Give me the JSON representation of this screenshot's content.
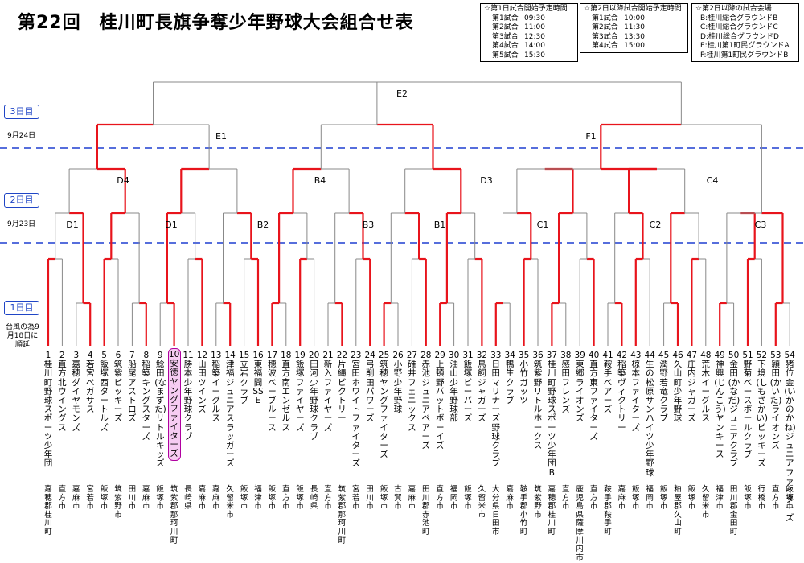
{
  "title": "第22回　桂川町長旗争奪少年野球大会組合せ表",
  "schedule1": {
    "title": "☆第1日試合開始予定時間",
    "rows": [
      {
        "label": "第1試合",
        "time": "09:30"
      },
      {
        "label": "第2試合",
        "time": "11:00"
      },
      {
        "label": "第3試合",
        "time": "12:30"
      },
      {
        "label": "第4試合",
        "time": "14:00"
      },
      {
        "label": "第5試合",
        "time": "15:30"
      }
    ]
  },
  "schedule2": {
    "title": "☆第2日以降試合開始予定時間",
    "rows": [
      {
        "label": "第1試合",
        "time": "10:00"
      },
      {
        "label": "第2試合",
        "time": "11:30"
      },
      {
        "label": "第3試合",
        "time": "13:30"
      },
      {
        "label": "第4試合",
        "time": "15:00"
      }
    ]
  },
  "venues": {
    "title": "☆第2日以降の試合会場",
    "rows": [
      "B:桂川総合グラウンドB",
      "C:桂川総合グラウンドC",
      "D:桂川総合グラウンドD",
      "E:桂川第1町民グラウンドA",
      "F:桂川第1町民グラウンドB"
    ]
  },
  "days": {
    "day3": "3日目",
    "day3_date": "9月24日",
    "day2": "2日目",
    "day2_date": "9月23日",
    "day1": "1日目",
    "note": "台風の為9月18日に順延"
  },
  "colors": {
    "winner": "#e8141c",
    "line": "#888888",
    "dash": "#1f3fd0",
    "highlight": "#f6ccf2"
  },
  "game_labels": [
    "E2",
    "E1",
    "F1",
    "D4",
    "B4",
    "D3",
    "C4",
    "D1",
    "D1",
    "B2",
    "B3",
    "B1",
    "C1",
    "C2",
    "C3"
  ],
  "teams": [
    {
      "name": "1桂川町野球スポーツ少年団",
      "city": "嘉穂郡桂川町"
    },
    {
      "name": "2直方北ウイングス",
      "city": "直方市"
    },
    {
      "name": "3嘉穂ダイヤモンズ",
      "city": "嘉麻市"
    },
    {
      "name": "4若宮ペガサス",
      "city": "宮若市"
    },
    {
      "name": "5飯塚西タートルズ",
      "city": "飯塚市"
    },
    {
      "name": "6筑紫ビッキーズ",
      "city": "筑紫野市"
    },
    {
      "name": "7船尾アストロズ",
      "city": "田川市"
    },
    {
      "name": "8稲築キングスターズ",
      "city": "嘉麻市"
    },
    {
      "name": "9鯰田(なまずた)リトルキッズ",
      "city": "飯塚市"
    },
    {
      "name": "10安徳ヤングファイターズ",
      "city": "筑紫郡那珂川町"
    },
    {
      "name": "11勝本少年野球クラブ",
      "city": "長崎県"
    },
    {
      "name": "12山田ツインズ",
      "city": "嘉麻市"
    },
    {
      "name": "13稲築イーグルス",
      "city": "嘉麻市"
    },
    {
      "name": "14津福ジュニアスラッガーズ",
      "city": "久留米市"
    },
    {
      "name": "15立岩クラブ",
      "city": "飯塚市"
    },
    {
      "name": "16東福間SSE",
      "city": "福津市"
    },
    {
      "name": "17穂波ベーブルース",
      "city": "飯塚市"
    },
    {
      "name": "18直方南エンゼルス",
      "city": "直方市"
    },
    {
      "name": "19飯塚ファイヤーズ",
      "city": "飯塚市"
    },
    {
      "name": "20田河少年野球クラブ",
      "city": "長崎県"
    },
    {
      "name": "21新入ファイヤーズ",
      "city": "直方市"
    },
    {
      "name": "22片縄ビクトリー",
      "city": "筑紫郡那珂川町"
    },
    {
      "name": "23宮田ホワイトファイターズ",
      "city": "宮若市"
    },
    {
      "name": "24弓削田パワーズ",
      "city": "田川市"
    },
    {
      "name": "25筑穂ヤングファイターズ",
      "city": "飯塚市"
    },
    {
      "name": "26小野少年野球",
      "city": "古賀市"
    },
    {
      "name": "27碓井フェニックス",
      "city": "嘉麻市"
    },
    {
      "name": "28赤池ジュニアベアーズ",
      "city": "田川郡赤池町"
    },
    {
      "name": "29上頓野バットボーイズ",
      "city": "直方市"
    },
    {
      "name": "30油山少年野球部",
      "city": "福岡市"
    },
    {
      "name": "31飯塚ビーバーズ",
      "city": "飯塚市"
    },
    {
      "name": "32鳥飼ジャガーズ",
      "city": "久留米市"
    },
    {
      "name": "33日田マリナーズ野球クラブ",
      "city": "大分県日田市"
    },
    {
      "name": "34鴨生クラブ",
      "city": "嘉麻市"
    },
    {
      "name": "35小竹ガッツ",
      "city": "鞍手郡小竹町"
    },
    {
      "name": "36筑紫野リトルホークス",
      "city": "筑紫野市"
    },
    {
      "name": "37桂川町野球スポーツ少年団B",
      "city": "嘉穂郡桂川町"
    },
    {
      "name": "38感田フレンズ",
      "city": "直方市"
    },
    {
      "name": "39東郷ライオンズ",
      "city": "鹿児島県薩摩川内市"
    },
    {
      "name": "40直方東ファイターズ",
      "city": "直方市"
    },
    {
      "name": "41鞍手ベアーズ",
      "city": "鞍手郡鞍手町"
    },
    {
      "name": "42稲築ヴィクトリー",
      "city": "嘉麻市"
    },
    {
      "name": "43椋本ファイターズ",
      "city": "飯塚市"
    },
    {
      "name": "44生の松原サンハイツ少年野球",
      "city": "福岡市"
    },
    {
      "name": "45潤野若竜クラブ",
      "city": "飯塚市"
    },
    {
      "name": "46久山町少年野球",
      "city": "粕屋郡久山町"
    },
    {
      "name": "47庄内ジャガーズ",
      "city": "飯塚市"
    },
    {
      "name": "48荒木イーグルス",
      "city": "久留米市"
    },
    {
      "name": "49神興(じんこう)ヤンキース",
      "city": "福津市"
    },
    {
      "name": "50金田(かなだ)ジュニアクラブ",
      "city": "田川郡金田町"
    },
    {
      "name": "51野菊ベースボールクラブ",
      "city": "飯塚市"
    },
    {
      "name": "52下境(しもざかい)ビッキーズ",
      "city": "行橋市"
    },
    {
      "name": "53頴田(かいた)ライオンズ",
      "city": "直方市"
    },
    {
      "name": "54猪位金(いかのかね)ジュニアファイターズ",
      "city": "飯塚市"
    }
  ]
}
